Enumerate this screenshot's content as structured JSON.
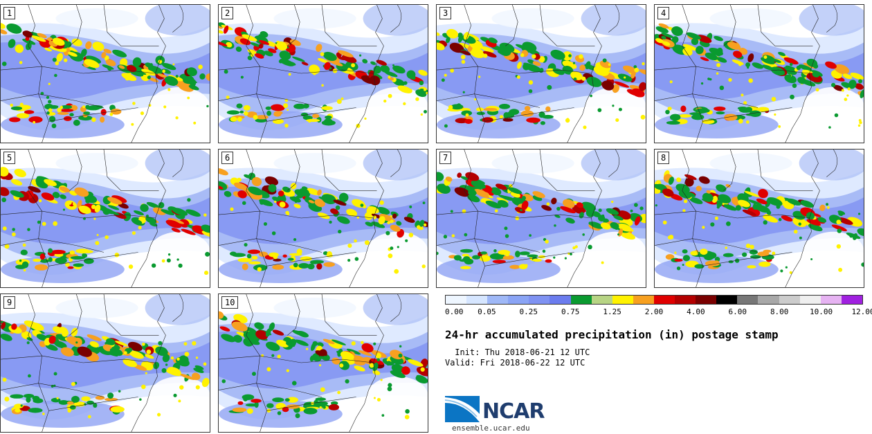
{
  "title": "24-hr accumulated precipitation (in) postage stamp",
  "init": " Init: Thu 2018-06-21 12 UTC",
  "valid": "Valid: Fri 2018-06-22 12 UTC",
  "logo_text": "NCAR",
  "url": "ensemble.ucar.edu",
  "colorbar": {
    "colors": [
      "#eef6ff",
      "#d6e6ff",
      "#9fb8f7",
      "#8aa4f5",
      "#7f92f2",
      "#6b7cee",
      "#0a9a30",
      "#b7d484",
      "#fff200",
      "#f7a020",
      "#e00000",
      "#b40000",
      "#7a0000",
      "#000000",
      "#777777",
      "#a8a8a8",
      "#cccccc",
      "#efefef",
      "#e6b3f2",
      "#a020e0"
    ],
    "labels": [
      "0.00",
      "0.05",
      "0.25",
      "0.75",
      "1.25",
      "2.00",
      "4.00",
      "6.00",
      "8.00",
      "10.00",
      "12.00"
    ]
  },
  "stamps": [
    {
      "label": "1"
    },
    {
      "label": "2"
    },
    {
      "label": "3"
    },
    {
      "label": "4"
    },
    {
      "label": "5"
    },
    {
      "label": "6"
    },
    {
      "label": "7"
    },
    {
      "label": "8"
    },
    {
      "label": "9"
    },
    {
      "label": "10"
    }
  ]
}
